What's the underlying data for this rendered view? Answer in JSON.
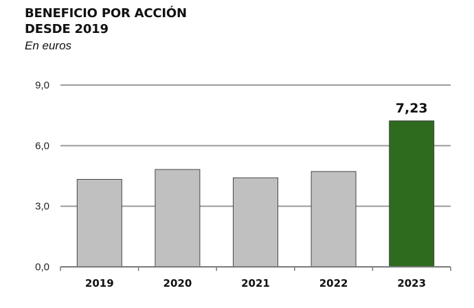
{
  "chart_data": {
    "type": "bar",
    "title_lines": [
      "BENEFICIO POR ACCIÓN",
      "DESDE 2019"
    ],
    "subtitle": "En euros",
    "categories": [
      "2019",
      "2020",
      "2021",
      "2022",
      "2023"
    ],
    "values": [
      4.33,
      4.82,
      4.41,
      4.72,
      7.23
    ],
    "data_labels": [
      "",
      "",
      "",
      "",
      "7,23"
    ],
    "bar_colors": [
      "#c0c0c0",
      "#c0c0c0",
      "#c0c0c0",
      "#c0c0c0",
      "#2e6b1e"
    ],
    "bar_outline": "#444444",
    "ylim": [
      0,
      9
    ],
    "yticks": [
      0,
      3,
      6,
      9
    ],
    "ytick_labels": [
      "0,0",
      "3,0",
      "6,0",
      "9,0"
    ],
    "grid": true,
    "grid_color": "#9a9a9a",
    "xlabel": "",
    "ylabel": ""
  }
}
